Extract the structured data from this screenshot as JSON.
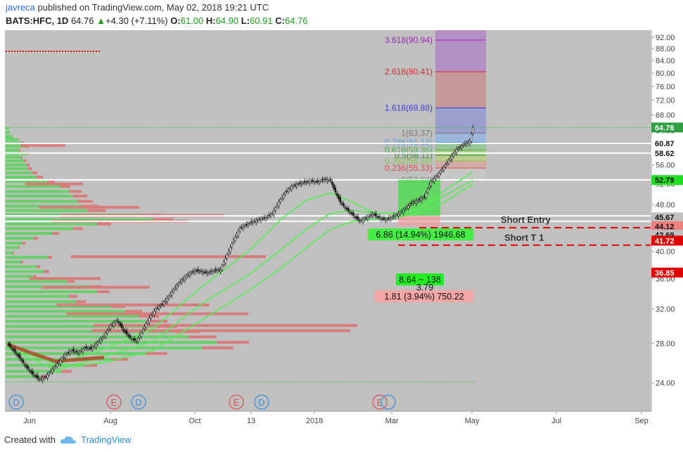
{
  "header": {
    "user": "javreca",
    "published": "published on TradingView.com, May 02, 2018 19:21 UTC",
    "symbol": "BATS:HFC, 1D",
    "last": "64.76",
    "change": "+4.30 (+7.11%)",
    "open_label": "O:",
    "open": "61.00",
    "high_label": "H:",
    "high": "64.90",
    "low_label": "L:",
    "low": "60.91",
    "close_label": "C:",
    "close": "64.76"
  },
  "footer": {
    "created_with": "Created with",
    "brand": "TradingView"
  },
  "colors": {
    "up": "#1a9e1a",
    "down": "#e00000",
    "bg": "#c0c0c0",
    "volume_up": "#5fd35f",
    "volume_down": "#d87a78"
  },
  "chart_data": {
    "type": "candlestick",
    "symbol": "BATS:HFC",
    "interval": "1D",
    "y_axis": {
      "ticks": [
        24.0,
        28.0,
        32.0,
        36.0,
        40.0,
        44.0,
        48.0,
        52.0,
        56.0,
        60.0,
        64.0,
        68.0,
        72.0,
        76.0,
        80.0,
        84.0,
        88.0,
        92.0
      ],
      "range": [
        21.5,
        94.5
      ],
      "scale": "log"
    },
    "x_axis": {
      "ticks": [
        "Jun",
        "Aug",
        "Oct",
        "13",
        "2018",
        "Mar",
        "May",
        "Jul",
        "Sep"
      ]
    },
    "price_tags": [
      {
        "value": "64.76",
        "price": 64.76,
        "color": "#2e9e3e"
      },
      {
        "value": "60.87",
        "price": 60.87,
        "color": "#ffffff"
      },
      {
        "value": "58.62",
        "price": 58.62,
        "color": "#ffffff"
      },
      {
        "value": "52.84",
        "price": 52.84,
        "color": "#ffffff"
      },
      {
        "value": "52.79",
        "price": 52.79,
        "color": "#22dd22"
      },
      {
        "value": "45.93",
        "price": 45.93,
        "color": "#ffffff"
      },
      {
        "value": "45.67",
        "price": 45.67,
        "color": "#c0c0c0"
      },
      {
        "value": "44.12",
        "price": 44.12,
        "color": "#f08080"
      },
      {
        "value": "42.69",
        "price": 42.69,
        "color": "#c0c0c0"
      },
      {
        "value": "41.72",
        "price": 41.72,
        "color": "#e00000"
      },
      {
        "value": "36.85",
        "price": 36.85,
        "color": "#e00000"
      }
    ],
    "fibonacci_levels": [
      {
        "label": "3.618(90.94)",
        "price": 90.94,
        "color": "#9c27b0"
      },
      {
        "label": "2.618(80.41)",
        "price": 80.41,
        "color": "#d32f2f"
      },
      {
        "label": "1.618(69.88)",
        "price": 69.88,
        "color": "#3f3fd8"
      },
      {
        "label": "1(63.37)",
        "price": 63.37,
        "color": "#777777"
      },
      {
        "label": "0.786(61.12)",
        "price": 61.12,
        "color": "#5aa0e0"
      },
      {
        "label": "0.618(59.35)",
        "price": 59.35,
        "color": "#4caf50"
      },
      {
        "label": "0.5(58.11)",
        "price": 58.11,
        "color": "#388e3c"
      },
      {
        "label": "0.382(56.88)",
        "price": 56.88,
        "color": "#8bc34a"
      },
      {
        "label": "0.236(55.33)",
        "price": 55.33,
        "color": "#d84a4a"
      },
      {
        "label": "0(52.84)",
        "price": 52.84,
        "color": "#888888"
      }
    ],
    "horizontal_lines": [
      60.87,
      58.62,
      52.84,
      45.93,
      44.99
    ],
    "annotations": [
      {
        "text": "Short Entry",
        "price": 44.12
      },
      {
        "text": "Short T 1",
        "price": 41.0
      }
    ],
    "measure_labels": [
      {
        "text": "6.86 (14.94%) 1946.68",
        "kind": "up"
      },
      {
        "text": "8.64 ~ 138",
        "kind": "up"
      },
      {
        "text": "3.79",
        "kind": "plain"
      },
      {
        "text": "1.81 (3.94%) 750.22",
        "kind": "down"
      }
    ],
    "event_markers": [
      {
        "label": "D",
        "type": "dividend"
      },
      {
        "label": "E",
        "type": "earnings"
      },
      {
        "label": "D",
        "type": "dividend"
      },
      {
        "label": "E",
        "type": "earnings"
      },
      {
        "label": "D",
        "type": "dividend"
      },
      {
        "label": "E",
        "type": "earnings"
      }
    ],
    "grid": false,
    "price_path": [
      [
        0,
        28.0
      ],
      [
        4,
        27.2
      ],
      [
        8,
        26.4
      ],
      [
        12,
        25.5
      ],
      [
        16,
        24.8
      ],
      [
        20,
        24.3
      ],
      [
        24,
        24.6
      ],
      [
        28,
        25.3
      ],
      [
        32,
        26.0
      ],
      [
        36,
        26.8
      ],
      [
        40,
        27.2
      ],
      [
        44,
        27.0
      ],
      [
        48,
        27.5
      ],
      [
        52,
        27.4
      ],
      [
        56,
        28.1
      ],
      [
        60,
        28.8
      ],
      [
        64,
        30.0
      ],
      [
        68,
        30.6
      ],
      [
        72,
        29.4
      ],
      [
        76,
        28.6
      ],
      [
        80,
        28.2
      ],
      [
        84,
        29.5
      ],
      [
        88,
        30.9
      ],
      [
        92,
        32.0
      ],
      [
        96,
        32.6
      ],
      [
        100,
        33.6
      ],
      [
        104,
        34.8
      ],
      [
        108,
        35.8
      ],
      [
        112,
        36.6
      ],
      [
        116,
        37.1
      ],
      [
        120,
        37.0
      ],
      [
        124,
        36.8
      ],
      [
        128,
        37.1
      ],
      [
        132,
        37.3
      ],
      [
        136,
        39.5
      ],
      [
        140,
        41.8
      ],
      [
        144,
        43.8
      ],
      [
        148,
        44.4
      ],
      [
        152,
        44.9
      ],
      [
        156,
        45.3
      ],
      [
        160,
        45.6
      ],
      [
        164,
        46.4
      ],
      [
        168,
        48.5
      ],
      [
        172,
        50.3
      ],
      [
        176,
        51.5
      ],
      [
        180,
        52.0
      ],
      [
        184,
        52.3
      ],
      [
        188,
        52.6
      ],
      [
        192,
        52.4
      ],
      [
        196,
        52.9
      ],
      [
        200,
        52.7
      ],
      [
        202,
        51.0
      ],
      [
        206,
        48.4
      ],
      [
        210,
        47.1
      ],
      [
        214,
        46.0
      ],
      [
        218,
        45.0
      ],
      [
        222,
        45.6
      ],
      [
        226,
        46.2
      ],
      [
        230,
        45.6
      ],
      [
        234,
        45.2
      ],
      [
        238,
        45.7
      ],
      [
        242,
        46.3
      ],
      [
        246,
        47.2
      ],
      [
        250,
        48.3
      ],
      [
        254,
        48.8
      ],
      [
        258,
        49.5
      ],
      [
        262,
        52.5
      ],
      [
        266,
        53.8
      ],
      [
        270,
        55.5
      ],
      [
        274,
        57.5
      ],
      [
        278,
        59.5
      ],
      [
        282,
        60.5
      ],
      [
        286,
        61.4
      ],
      [
        288,
        64.76
      ]
    ],
    "ma_series": [
      {
        "color": "#55ee55",
        "values": [
          [
            0,
            28.0
          ],
          [
            30,
            25.8
          ],
          [
            60,
            27.4
          ],
          [
            90,
            29.6
          ],
          [
            120,
            34.8
          ],
          [
            150,
            40.2
          ],
          [
            170,
            45.5
          ],
          [
            185,
            48.8
          ],
          [
            200,
            50.2
          ],
          [
            214,
            48.4
          ],
          [
            226,
            46.6
          ],
          [
            240,
            46.3
          ],
          [
            255,
            47.2
          ],
          [
            270,
            50.6
          ],
          [
            288,
            54.5
          ]
        ]
      },
      {
        "color": "#55ee55",
        "values": [
          [
            0,
            27.6
          ],
          [
            30,
            25.2
          ],
          [
            60,
            26.6
          ],
          [
            90,
            28.2
          ],
          [
            120,
            32.6
          ],
          [
            150,
            36.6
          ],
          [
            170,
            40.4
          ],
          [
            185,
            43.6
          ],
          [
            200,
            46.4
          ],
          [
            214,
            46.9
          ],
          [
            226,
            46.5
          ],
          [
            240,
            46.4
          ],
          [
            255,
            47.3
          ],
          [
            270,
            49.6
          ],
          [
            288,
            52.79
          ]
        ]
      },
      {
        "color": "#55ee55",
        "values": [
          [
            0,
            27.4
          ],
          [
            40,
            25.6
          ],
          [
            60,
            26.0
          ],
          [
            90,
            27.2
          ],
          [
            120,
            30.6
          ],
          [
            150,
            34.4
          ],
          [
            170,
            37.6
          ],
          [
            185,
            40.6
          ],
          [
            200,
            43.6
          ],
          [
            214,
            45.0
          ],
          [
            226,
            45.3
          ],
          [
            240,
            45.6
          ],
          [
            255,
            46.5
          ],
          [
            270,
            48.4
          ],
          [
            288,
            52.0
          ]
        ]
      },
      {
        "color": "#b04a2a",
        "values": [
          [
            0,
            27.9
          ],
          [
            16,
            26.9
          ],
          [
            30,
            26.1
          ],
          [
            45,
            26.3
          ],
          [
            60,
            26.5
          ]
        ]
      }
    ],
    "volume_profile": [
      [
        64.5,
        5,
        0
      ],
      [
        63.5,
        6,
        0
      ],
      [
        62.5,
        10,
        0
      ],
      [
        61.8,
        18,
        1
      ],
      [
        61.0,
        24,
        3
      ],
      [
        60.2,
        28,
        5
      ],
      [
        59.3,
        20,
        1
      ],
      [
        58.5,
        30,
        2
      ],
      [
        57.7,
        22,
        2
      ],
      [
        56.9,
        26,
        3
      ],
      [
        56.0,
        30,
        4
      ],
      [
        55.2,
        32,
        5
      ],
      [
        54.3,
        38,
        7
      ],
      [
        53.4,
        44,
        9
      ],
      [
        52.5,
        60,
        10
      ],
      [
        51.5,
        78,
        14
      ],
      [
        50.5,
        90,
        18
      ],
      [
        49.6,
        96,
        20
      ],
      [
        48.6,
        102,
        22
      ],
      [
        47.7,
        108,
        24
      ],
      [
        46.9,
        116,
        26
      ],
      [
        46.1,
        190,
        30
      ],
      [
        45.3,
        210,
        28
      ],
      [
        44.5,
        130,
        20
      ],
      [
        43.7,
        96,
        14
      ],
      [
        42.9,
        66,
        10
      ],
      [
        42.1,
        40,
        6
      ],
      [
        41.3,
        24,
        4
      ],
      [
        40.6,
        18,
        2
      ],
      [
        39.8,
        10,
        2
      ],
      [
        39.1,
        60,
        6
      ],
      [
        38.4,
        22,
        3
      ],
      [
        37.7,
        44,
        5
      ],
      [
        37.0,
        54,
        8
      ],
      [
        36.3,
        40,
        4
      ],
      [
        35.6,
        88,
        10
      ],
      [
        34.9,
        120,
        16
      ],
      [
        34.2,
        130,
        18
      ],
      [
        33.6,
        90,
        12
      ],
      [
        32.9,
        100,
        14
      ],
      [
        32.3,
        150,
        20
      ],
      [
        31.7,
        170,
        24
      ],
      [
        31.1,
        190,
        28
      ],
      [
        30.5,
        200,
        30
      ],
      [
        29.9,
        210,
        34
      ],
      [
        29.3,
        240,
        36
      ],
      [
        28.7,
        260,
        40
      ],
      [
        28.1,
        300,
        46
      ],
      [
        27.5,
        280,
        44
      ],
      [
        26.9,
        200,
        30
      ],
      [
        26.3,
        150,
        24
      ],
      [
        25.7,
        110,
        20
      ],
      [
        25.1,
        80,
        14
      ],
      [
        24.6,
        50,
        8
      ]
    ]
  }
}
